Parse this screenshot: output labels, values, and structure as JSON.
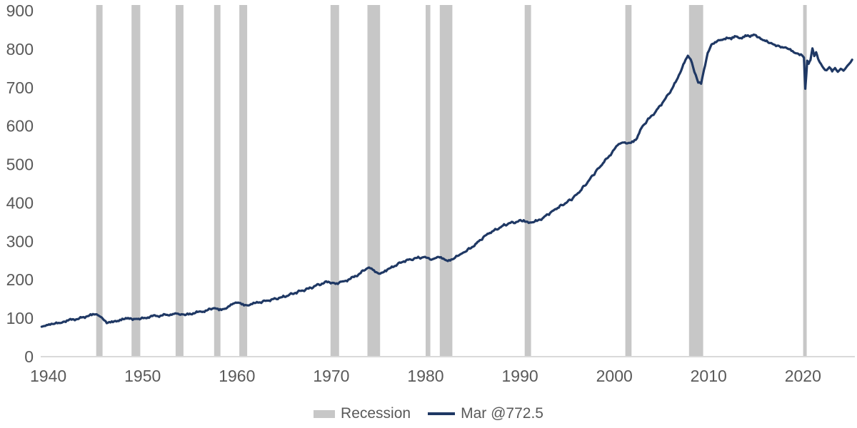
{
  "chart_data": {
    "type": "line",
    "title": "",
    "xlabel": "",
    "ylabel": "",
    "y_axis": {
      "min": 0,
      "max": 900,
      "tick_interval": 100,
      "ticks": [
        0,
        100,
        200,
        300,
        400,
        500,
        600,
        700,
        800,
        900
      ]
    },
    "x_axis": {
      "range": [
        1939.2,
        2025.5
      ],
      "ticks": [
        1940,
        1950,
        1960,
        1970,
        1980,
        1990,
        2000,
        2010,
        2020
      ]
    },
    "grid": false,
    "legend_position": "bottom-center",
    "legend": [
      {
        "label": "Recession",
        "type": "area",
        "color": "#c7c7c7"
      },
      {
        "label": "Mar @772.5",
        "type": "line",
        "color": "#1f3864"
      }
    ],
    "colors": {
      "line": "#1f3864",
      "recession_band": "#c7c7c7",
      "axis_line": "#d9d9d9",
      "tick_text": "#595959",
      "background": "#ffffff"
    },
    "recessions": [
      [
        1945.08,
        1945.75
      ],
      [
        1948.83,
        1949.75
      ],
      [
        1953.5,
        1954.33
      ],
      [
        1957.58,
        1958.25
      ],
      [
        1960.25,
        1961.08
      ],
      [
        1969.92,
        1970.83
      ],
      [
        1973.83,
        1975.17
      ],
      [
        1980.0,
        1980.5
      ],
      [
        1981.5,
        1982.83
      ],
      [
        1990.5,
        1991.17
      ],
      [
        2001.17,
        2001.83
      ],
      [
        2007.92,
        2009.42
      ],
      [
        2020.08,
        2020.33
      ]
    ],
    "series": [
      {
        "name": "Mar @772.5",
        "color": "#1f3864",
        "last_label": "Mar @772.5",
        "last_value": 772.5,
        "points": [
          [
            1939.3,
            78
          ],
          [
            1939.7,
            80
          ],
          [
            1940.2,
            83
          ],
          [
            1940.6,
            85
          ],
          [
            1941.1,
            88
          ],
          [
            1941.6,
            91
          ],
          [
            1942.1,
            94
          ],
          [
            1942.7,
            97
          ],
          [
            1943.3,
            100
          ],
          [
            1944.0,
            104
          ],
          [
            1944.6,
            108
          ],
          [
            1945.0,
            110
          ],
          [
            1945.4,
            106
          ],
          [
            1945.8,
            98
          ],
          [
            1946.2,
            87
          ],
          [
            1946.6,
            89
          ],
          [
            1947.1,
            93
          ],
          [
            1947.6,
            96
          ],
          [
            1948.1,
            98
          ],
          [
            1948.7,
            100
          ],
          [
            1949.2,
            98
          ],
          [
            1949.7,
            97
          ],
          [
            1950.2,
            101
          ],
          [
            1950.8,
            104
          ],
          [
            1951.4,
            106
          ],
          [
            1952.0,
            107
          ],
          [
            1952.6,
            109
          ],
          [
            1953.2,
            111
          ],
          [
            1953.6,
            112
          ],
          [
            1954.0,
            109
          ],
          [
            1954.5,
            108
          ],
          [
            1955.0,
            112
          ],
          [
            1955.6,
            114
          ],
          [
            1956.2,
            117
          ],
          [
            1956.8,
            120
          ],
          [
            1957.4,
            125
          ],
          [
            1957.7,
            126
          ],
          [
            1958.1,
            121
          ],
          [
            1958.6,
            124
          ],
          [
            1959.1,
            131
          ],
          [
            1959.6,
            138
          ],
          [
            1960.0,
            140
          ],
          [
            1960.5,
            136
          ],
          [
            1961.0,
            134
          ],
          [
            1961.5,
            137
          ],
          [
            1962.0,
            140
          ],
          [
            1962.7,
            143
          ],
          [
            1963.4,
            146
          ],
          [
            1964.1,
            151
          ],
          [
            1964.8,
            155
          ],
          [
            1965.5,
            160
          ],
          [
            1966.2,
            166
          ],
          [
            1966.9,
            172
          ],
          [
            1967.6,
            177
          ],
          [
            1968.3,
            184
          ],
          [
            1969.0,
            190
          ],
          [
            1969.7,
            195
          ],
          [
            1970.2,
            192
          ],
          [
            1970.7,
            189
          ],
          [
            1971.2,
            196
          ],
          [
            1971.8,
            200
          ],
          [
            1972.4,
            207
          ],
          [
            1973.0,
            216
          ],
          [
            1973.7,
            228
          ],
          [
            1974.0,
            232
          ],
          [
            1974.4,
            226
          ],
          [
            1974.9,
            218
          ],
          [
            1975.2,
            216
          ],
          [
            1975.7,
            224
          ],
          [
            1976.3,
            231
          ],
          [
            1977.0,
            240
          ],
          [
            1977.7,
            248
          ],
          [
            1978.4,
            253
          ],
          [
            1979.1,
            257
          ],
          [
            1979.8,
            259
          ],
          [
            1980.2,
            257
          ],
          [
            1980.6,
            252
          ],
          [
            1981.0,
            256
          ],
          [
            1981.5,
            258
          ],
          [
            1982.0,
            253
          ],
          [
            1982.6,
            250
          ],
          [
            1983.0,
            255
          ],
          [
            1983.5,
            263
          ],
          [
            1984.0,
            271
          ],
          [
            1984.7,
            281
          ],
          [
            1985.4,
            295
          ],
          [
            1986.1,
            310
          ],
          [
            1986.8,
            322
          ],
          [
            1987.5,
            331
          ],
          [
            1988.2,
            341
          ],
          [
            1989.0,
            348
          ],
          [
            1989.7,
            351
          ],
          [
            1990.4,
            355
          ],
          [
            1990.8,
            351
          ],
          [
            1991.2,
            349
          ],
          [
            1991.8,
            353
          ],
          [
            1992.5,
            362
          ],
          [
            1993.2,
            374
          ],
          [
            1994.0,
            387
          ],
          [
            1994.8,
            399
          ],
          [
            1995.6,
            412
          ],
          [
            1996.4,
            431
          ],
          [
            1997.2,
            455
          ],
          [
            1998.0,
            480
          ],
          [
            1998.8,
            503
          ],
          [
            1999.5,
            523
          ],
          [
            2000.1,
            543
          ],
          [
            2000.6,
            554
          ],
          [
            2001.0,
            557
          ],
          [
            2001.5,
            556
          ],
          [
            2001.9,
            560
          ],
          [
            2002.4,
            568
          ],
          [
            2003.0,
            600
          ],
          [
            2003.7,
            620
          ],
          [
            2004.4,
            638
          ],
          [
            2005.1,
            660
          ],
          [
            2005.8,
            684
          ],
          [
            2006.5,
            714
          ],
          [
            2007.2,
            752
          ],
          [
            2007.8,
            783
          ],
          [
            2008.1,
            773
          ],
          [
            2008.5,
            740
          ],
          [
            2008.9,
            713
          ],
          [
            2009.2,
            710
          ],
          [
            2009.5,
            745
          ],
          [
            2009.9,
            790
          ],
          [
            2010.3,
            812
          ],
          [
            2010.8,
            818
          ],
          [
            2011.3,
            824
          ],
          [
            2011.9,
            830
          ],
          [
            2012.4,
            826
          ],
          [
            2012.9,
            833
          ],
          [
            2013.4,
            829
          ],
          [
            2013.9,
            836
          ],
          [
            2014.4,
            832
          ],
          [
            2014.9,
            837
          ],
          [
            2015.4,
            830
          ],
          [
            2015.9,
            823
          ],
          [
            2016.4,
            816
          ],
          [
            2016.9,
            812
          ],
          [
            2017.4,
            809
          ],
          [
            2017.9,
            804
          ],
          [
            2018.4,
            801
          ],
          [
            2018.9,
            795
          ],
          [
            2019.4,
            789
          ],
          [
            2019.9,
            784
          ],
          [
            2020.1,
            778
          ],
          [
            2020.25,
            697
          ],
          [
            2020.45,
            770
          ],
          [
            2020.6,
            762
          ],
          [
            2020.8,
            772
          ],
          [
            2021.0,
            802
          ],
          [
            2021.2,
            782
          ],
          [
            2021.4,
            792
          ],
          [
            2021.6,
            775
          ],
          [
            2021.9,
            762
          ],
          [
            2022.2,
            750
          ],
          [
            2022.5,
            745
          ],
          [
            2022.8,
            753
          ],
          [
            2023.1,
            742
          ],
          [
            2023.4,
            751
          ],
          [
            2023.7,
            741
          ],
          [
            2024.0,
            749
          ],
          [
            2024.3,
            744
          ],
          [
            2024.6,
            753
          ],
          [
            2024.9,
            762
          ],
          [
            2025.05,
            766
          ],
          [
            2025.21,
            772.5
          ]
        ]
      }
    ]
  }
}
